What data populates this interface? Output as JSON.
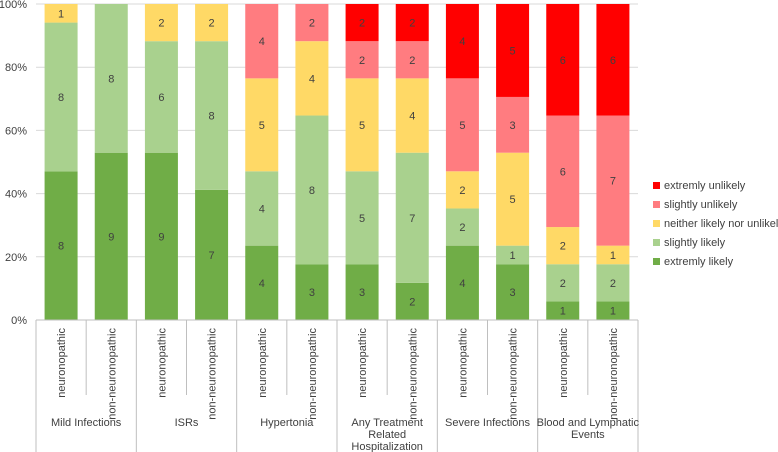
{
  "chart_data": {
    "type": "bar",
    "stacked": "percent",
    "y_ticks": [
      "0%",
      "20%",
      "40%",
      "60%",
      "80%",
      "100%"
    ],
    "ylim": [
      0,
      100
    ],
    "groups": [
      {
        "name": "Mild Infections",
        "categories": [
          "neuronopathic",
          "non-neuronopathic"
        ]
      },
      {
        "name": "ISRs",
        "categories": [
          "neuronopathic",
          "non-neuronopathic"
        ]
      },
      {
        "name": "Hypertonia",
        "categories": [
          "neuronopathic",
          "non-neuronopathic"
        ]
      },
      {
        "name": "Any Treatment Related Hospitalization",
        "categories": [
          "neuronopathic",
          "non-neuronopathic"
        ]
      },
      {
        "name": "Severe Infections",
        "categories": [
          "neuronopathic",
          "non-neuronopathic"
        ]
      },
      {
        "name": "Blood and Lymphatic Events",
        "categories": [
          "neuronopathic",
          "non-neuronopathic"
        ]
      }
    ],
    "series": [
      {
        "name": "extremly likely",
        "color": "#70AD47",
        "values": [
          8,
          9,
          9,
          7,
          4,
          3,
          3,
          2,
          4,
          3,
          1,
          1
        ]
      },
      {
        "name": "slightly likely",
        "color": "#A9D18E",
        "values": [
          8,
          8,
          6,
          8,
          4,
          8,
          5,
          7,
          2,
          1,
          2,
          2
        ]
      },
      {
        "name": "neither likely nor unlikely",
        "color": "#FFD966",
        "values": [
          1,
          0,
          2,
          2,
          5,
          4,
          5,
          4,
          2,
          5,
          2,
          1
        ]
      },
      {
        "name": "slightly unlikely",
        "color": "#FF7C80",
        "values": [
          0,
          0,
          0,
          0,
          4,
          2,
          2,
          2,
          5,
          3,
          6,
          7
        ]
      },
      {
        "name": "extremly unlikely",
        "color": "#FF0000",
        "values": [
          0,
          0,
          0,
          0,
          0,
          0,
          2,
          2,
          4,
          5,
          6,
          6
        ]
      }
    ],
    "legend_position": "right"
  }
}
